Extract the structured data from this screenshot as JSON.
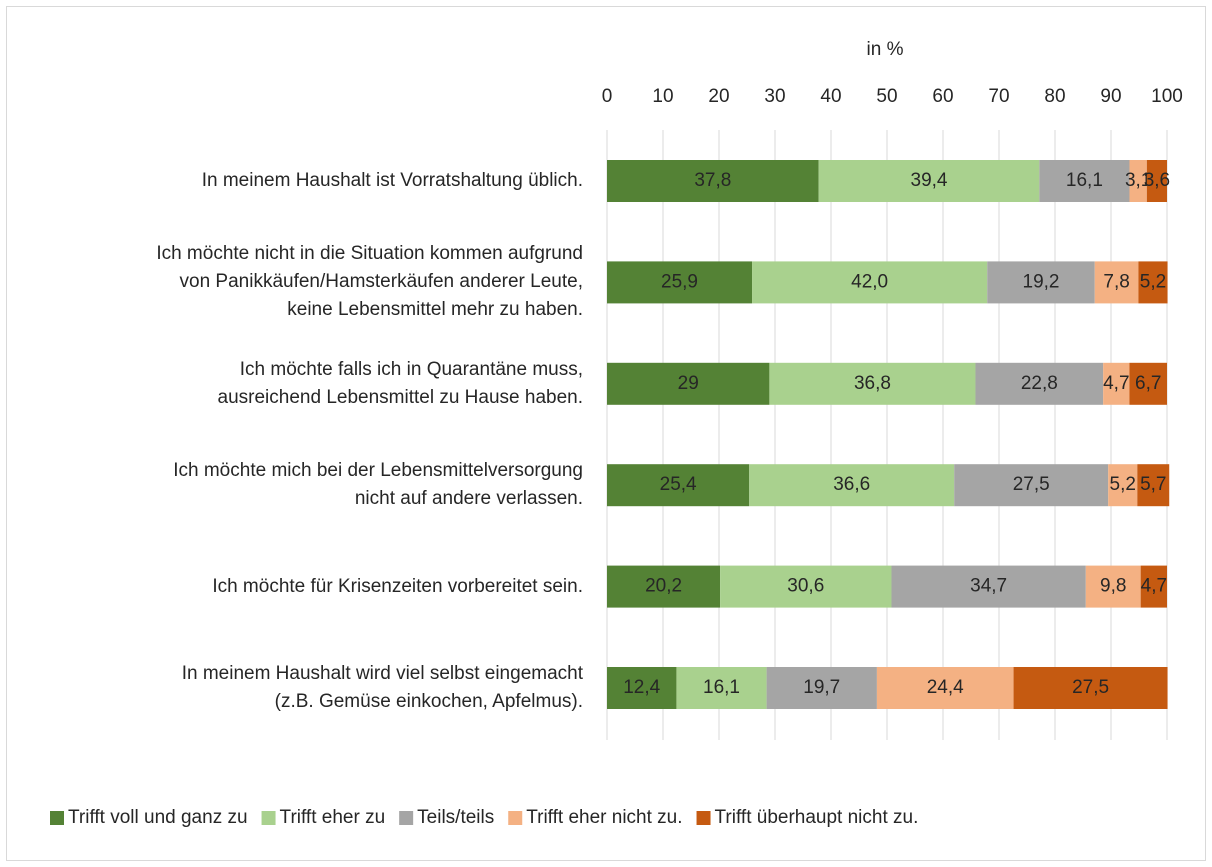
{
  "chart_data": {
    "type": "stacked-bar-horizontal",
    "axis_label": "in %",
    "categories": [
      "In meinem Haushalt ist Vorratshaltung üblich.",
      "Ich möchte nicht in die Situation kommen aufgrund\nvon Panikkäufen/Hamsterkäufen anderer Leute,\nkeine Lebensmittel mehr zu haben.",
      "Ich möchte falls ich in Quarantäne muss,\nausreichend Lebensmittel zu Hause haben.",
      "Ich möchte mich bei der Lebensmittelversorgung\nnicht auf andere verlassen.",
      "Ich möchte für Krisenzeiten vorbereitet sein.",
      "In meinem Haushalt wird viel selbst eingemacht\n(z.B. Gemüse einkochen, Apfelmus)."
    ],
    "series": [
      {
        "name": "Trifft voll und ganz zu",
        "color": "#548235",
        "values": [
          37.8,
          25.9,
          29,
          25.4,
          20.2,
          12.4
        ],
        "value_labels": [
          "37,8",
          "25,9",
          "29",
          "25,4",
          "20,2",
          "12,4"
        ]
      },
      {
        "name": "Trifft eher zu",
        "color": "#a9d18e",
        "values": [
          39.4,
          42.0,
          36.8,
          36.6,
          30.6,
          16.1
        ],
        "value_labels": [
          "39,4",
          "42,0",
          "36,8",
          "36,6",
          "30,6",
          "16,1"
        ]
      },
      {
        "name": "Teils/teils",
        "color": "#a5a5a5",
        "values": [
          16.1,
          19.2,
          22.8,
          27.5,
          34.7,
          19.7
        ],
        "value_labels": [
          "16,1",
          "19,2",
          "22,8",
          "27,5",
          "34,7",
          "19,7"
        ]
      },
      {
        "name": "Trifft eher nicht zu.",
        "color": "#f4b183",
        "values": [
          3.1,
          7.8,
          4.7,
          5.2,
          9.8,
          24.4
        ],
        "value_labels": [
          "3,1",
          "7,8",
          "4,7",
          "5,2",
          "9,8",
          "24,4"
        ]
      },
      {
        "name": "Trifft überhaupt nicht zu.",
        "color": "#c55a11",
        "values": [
          3.6,
          5.2,
          6.7,
          5.7,
          4.7,
          27.5
        ],
        "value_labels": [
          "3,6",
          "5,2",
          "6,7",
          "5,7",
          "4,7",
          "27,5"
        ]
      }
    ],
    "xlim": [
      0,
      100
    ],
    "xticks": [
      0,
      10,
      20,
      30,
      40,
      50,
      60,
      70,
      80,
      90,
      100
    ],
    "grid": true,
    "legend": "bottom"
  }
}
